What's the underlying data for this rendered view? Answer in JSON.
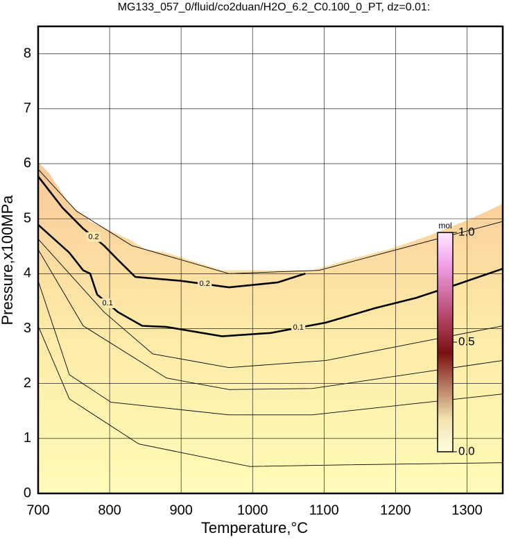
{
  "chart_data": {
    "type": "contour",
    "title": "MG133_057_0/fluid/co2duan/H2O_6.2_C0.100_0_PT, dz=0.01:",
    "x_label": "Temperature,°C",
    "y_label": "Pressure,x100MPa",
    "xlim": [
      700,
      1350
    ],
    "ylim": [
      0,
      8.5
    ],
    "xticks": [
      700,
      800,
      900,
      1000,
      1100,
      1200,
      1300
    ],
    "yticks": [
      0,
      1,
      2,
      3,
      4,
      5,
      6,
      7,
      8
    ],
    "grid": true,
    "boundary": {
      "x": [
        700,
        714.6,
        743.7,
        772.8,
        826.2,
        850.5,
        879.6,
        957.3,
        1083.5,
        1132,
        1190.3,
        1248.5,
        1306.8,
        1350
      ],
      "y": [
        6.03,
        5.84,
        5.27,
        4.95,
        4.63,
        4.44,
        4.38,
        4.06,
        4.06,
        4.25,
        4.44,
        4.7,
        5.01,
        5.27
      ]
    },
    "contours": [
      {
        "label": "0.1",
        "x": [
          700,
          743.7,
          763,
          772.8,
          782.5,
          811.7,
          845.6,
          879.6,
          957.3,
          1025.2,
          1102.9,
          1170.9,
          1229.1,
          1287.4,
          1350
        ],
        "y": [
          4.89,
          4.38,
          4.06,
          4.0,
          3.62,
          3.3,
          3.05,
          3.03,
          2.86,
          2.92,
          3.11,
          3.37,
          3.56,
          3.81,
          4.09
        ]
      },
      {
        "label": "0.2",
        "x": [
          700,
          734,
          763,
          792.2,
          811.7,
          835.9,
          899,
          967,
          1035,
          1073.8
        ],
        "y": [
          5.77,
          5.2,
          4.82,
          4.51,
          4.25,
          3.94,
          3.87,
          3.75,
          3.84,
          4.0
        ]
      },
      {
        "x": [
          700,
          743.7,
          840.8,
          996.1,
          1132,
          1350
        ],
        "y": [
          3.05,
          1.72,
          0.9,
          0.49,
          0.52,
          0.56
        ]
      },
      {
        "x": [
          700,
          743.7,
          801.9,
          967,
          1083.5,
          1350
        ],
        "y": [
          3.87,
          2.16,
          1.66,
          1.43,
          1.43,
          1.81
        ]
      },
      {
        "x": [
          700,
          763,
          879.6,
          967,
          1083.5,
          1350
        ],
        "y": [
          4.44,
          3.05,
          2.1,
          1.89,
          1.91,
          2.42
        ]
      },
      {
        "x": [
          700,
          792.2,
          860.2,
          967,
          1102.9,
          1350
        ],
        "y": [
          4.63,
          3.3,
          2.54,
          2.29,
          2.42,
          3.05
        ]
      },
      {
        "x": [
          700,
          753.4,
          831.1,
          967,
          1093.2,
          1350
        ],
        "y": [
          5.9,
          5.14,
          4.51,
          4.0,
          4.06,
          4.95
        ]
      }
    ],
    "colorbar": {
      "label": "mol",
      "lim": [
        0,
        1
      ],
      "ticks": [
        {
          "value": 0,
          "label": "0.0"
        },
        {
          "value": 0.5,
          "label": "0.5"
        },
        {
          "value": 1,
          "label": "1.0"
        }
      ]
    }
  }
}
